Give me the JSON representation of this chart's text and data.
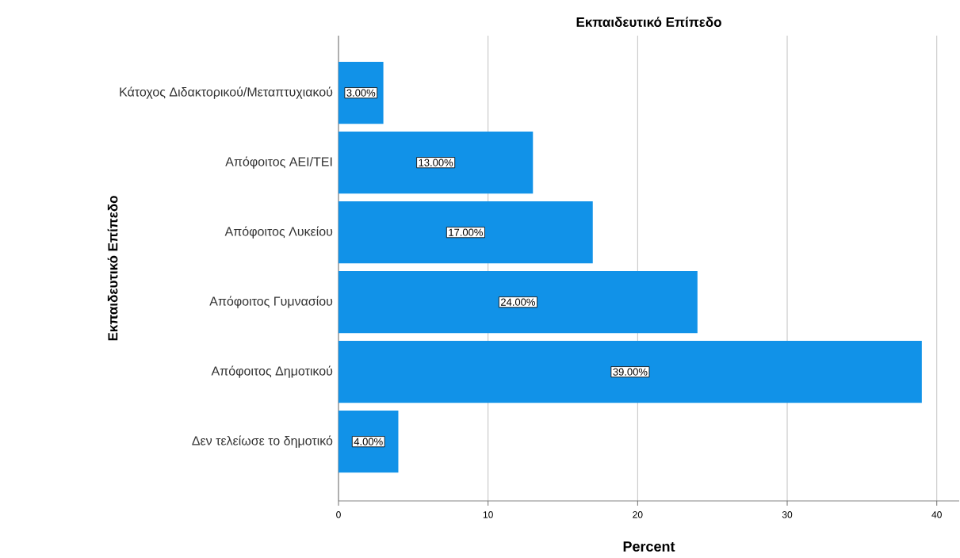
{
  "chart_data": {
    "type": "bar",
    "orientation": "horizontal",
    "title": "Εκπαιδευτικό Επίπεδο",
    "xlabel": "Percent",
    "ylabel": "Εκπαιδευτικό Επίπεδο",
    "categories": [
      "Κάτοχος Διδακτορικού/Μεταπτυχιακού",
      "Απόφοιτος ΑΕΙ/ΤΕΙ",
      "Απόφοιτος Λυκείου",
      "Απόφοιτος Γυμνασίου",
      "Απόφοιτος Δημοτικού",
      "Δεν τελείωσε το δημοτικό"
    ],
    "values": [
      3,
      13,
      17,
      24,
      39,
      4
    ],
    "value_labels": [
      "3.00%",
      "13.00%",
      "17.00%",
      "24.00%",
      "39.00%",
      "4.00%"
    ],
    "color": "#1192e8",
    "xlim": [
      0,
      41.5
    ],
    "xticks": [
      0,
      10,
      20,
      30,
      40
    ],
    "grid": "x"
  }
}
